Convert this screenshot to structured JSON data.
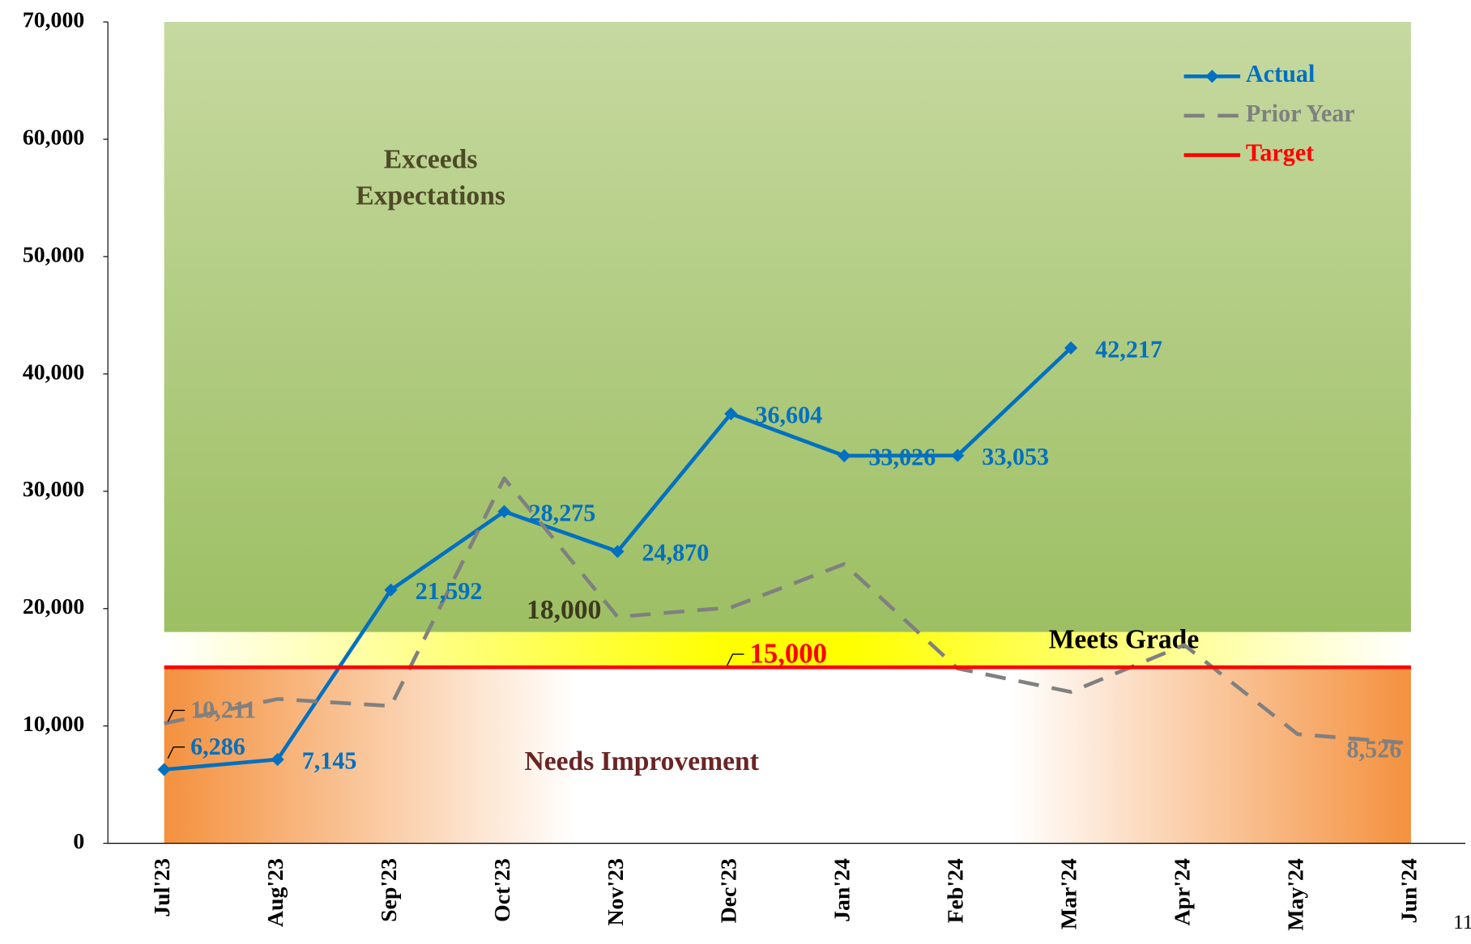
{
  "chart_data": {
    "type": "line",
    "categories": [
      "Jul'23",
      "Aug'23",
      "Sep'23",
      "Oct'23",
      "Nov'23",
      "Dec'23",
      "Jan'24",
      "Feb'24",
      "Mar'24",
      "Apr'24",
      "May'24",
      "Jun'24"
    ],
    "series": [
      {
        "name": "Actual",
        "color": "#0070c0",
        "values": [
          6286,
          7145,
          21592,
          28275,
          24870,
          36604,
          33026,
          33053,
          42217,
          null,
          null,
          null
        ],
        "value_labels": [
          "6,286",
          "7,145",
          "21,592",
          "28,275",
          "24,870",
          "36,604",
          "33,026",
          "33,053",
          "42,217",
          null,
          null,
          null
        ]
      },
      {
        "name": "Prior Year",
        "color": "#808080",
        "values": [
          10211,
          12300,
          11700,
          31100,
          19300,
          20100,
          23800,
          14900,
          12900,
          16900,
          9300,
          8526
        ],
        "value_labels": [
          "10,211",
          null,
          null,
          null,
          null,
          null,
          null,
          null,
          null,
          null,
          null,
          "8,526"
        ]
      },
      {
        "name": "Target",
        "color": "#ff0000",
        "values": [
          15000,
          15000,
          15000,
          15000,
          15000,
          15000,
          15000,
          15000,
          15000,
          15000,
          15000,
          15000
        ],
        "value_labels": [
          null,
          null,
          null,
          null,
          null,
          "15,000",
          null,
          null,
          null,
          null,
          null,
          null
        ]
      }
    ],
    "bands": [
      {
        "label_lines": [
          "Exceeds",
          "Expectations"
        ],
        "from": 18000,
        "to": 70000,
        "from_label": "18,000"
      },
      {
        "label_lines": [
          "Meets Grade"
        ],
        "from": 15000,
        "to": 18000
      },
      {
        "label_lines": [
          "Needs Improvement"
        ],
        "from": 0,
        "to": 15000
      }
    ],
    "ylim": [
      0,
      70000
    ],
    "yticks": [
      {
        "value": 0,
        "label": "0"
      },
      {
        "value": 10000,
        "label": "10,000"
      },
      {
        "value": 20000,
        "label": "20,000"
      },
      {
        "value": 30000,
        "label": "30,000"
      },
      {
        "value": 40000,
        "label": "40,000"
      },
      {
        "value": 50000,
        "label": "50,000"
      },
      {
        "value": 60000,
        "label": "60,000"
      },
      {
        "value": 70000,
        "label": "70,000"
      }
    ],
    "legend": "top-right",
    "page_number": "11"
  }
}
